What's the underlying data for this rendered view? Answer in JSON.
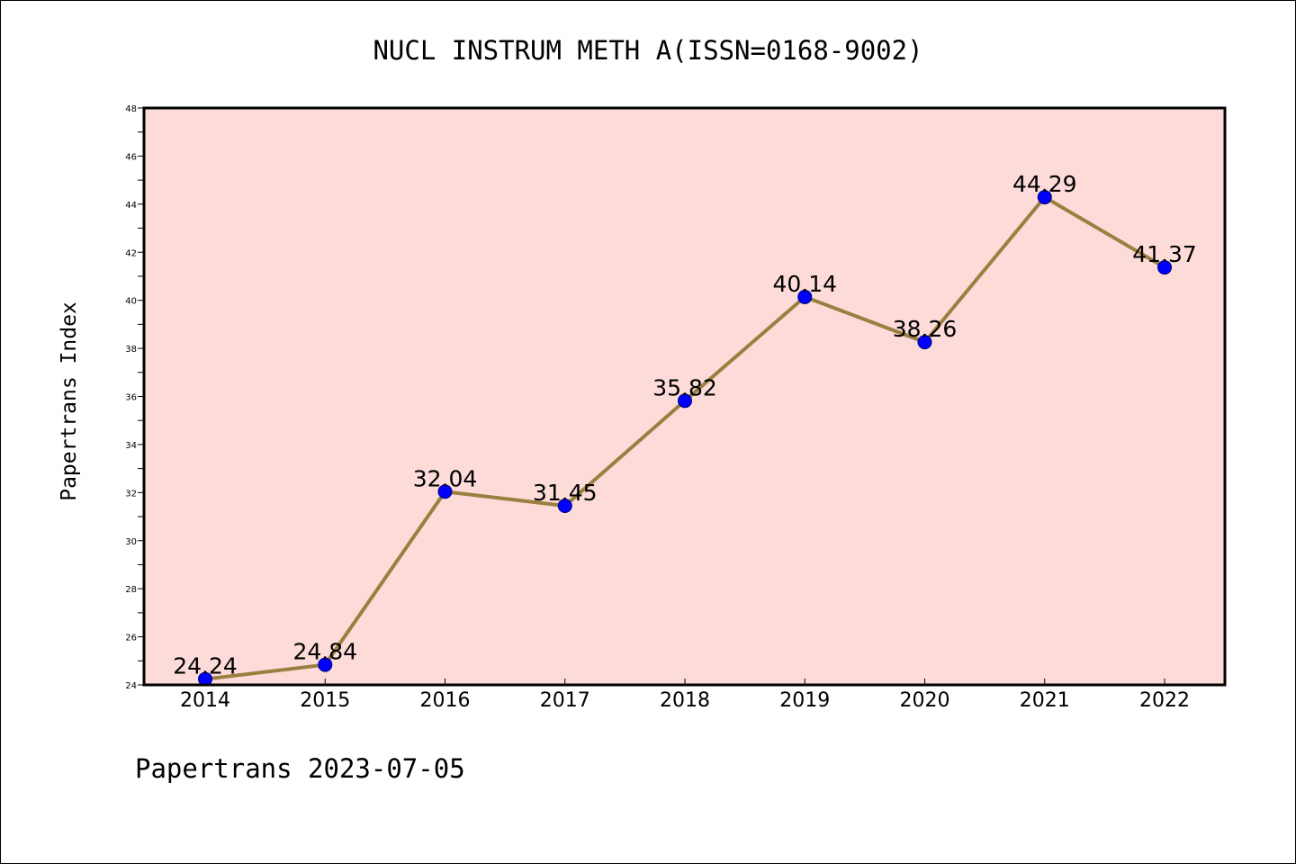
{
  "chart_data": {
    "type": "line",
    "title": "NUCL INSTRUM METH A(ISSN=0168-9002)",
    "xlabel": "",
    "ylabel": "Papertrans Index",
    "footer": "Papertrans 2023-07-05",
    "categories": [
      "2014",
      "2015",
      "2016",
      "2017",
      "2018",
      "2019",
      "2020",
      "2021",
      "2022"
    ],
    "values": [
      24.24,
      24.84,
      32.04,
      31.45,
      35.82,
      40.14,
      38.26,
      44.29,
      41.37
    ],
    "data_labels": [
      "24.24",
      "24.84",
      "32.04",
      "31.45",
      "35.82",
      "40.14",
      "38.26",
      "44.29",
      "41.37"
    ],
    "ylim": [
      24,
      48
    ],
    "yticks": [
      "24",
      "26",
      "28",
      "30",
      "32",
      "34",
      "36",
      "38",
      "40",
      "42",
      "44",
      "46",
      "48"
    ],
    "grid": false,
    "legend": "none",
    "colors": {
      "plot_background": "#fddbd9",
      "line": "#9a8040",
      "marker": "#0000ff",
      "marker_edge": "#00007a",
      "axes": "#000000"
    }
  }
}
